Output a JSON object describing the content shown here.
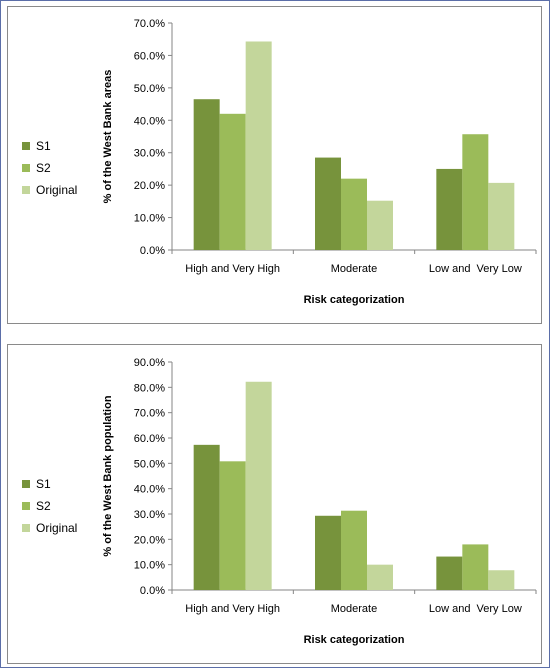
{
  "chart_data": [
    {
      "type": "bar",
      "categories": [
        "High and Very High",
        "Moderate",
        "Low and  Very Low"
      ],
      "series": [
        {
          "name": "S1",
          "color": "#77933c",
          "values": [
            46.5,
            28.5,
            25.0
          ]
        },
        {
          "name": "S2",
          "color": "#9bbb59",
          "values": [
            42.0,
            22.0,
            35.7
          ]
        },
        {
          "name": "Original",
          "color": "#c3d69b",
          "values": [
            64.3,
            15.2,
            20.7
          ]
        }
      ],
      "xlabel": "Risk categorization",
      "ylabel": "% of the West Bank areas",
      "ylim": [
        0,
        70
      ],
      "yticks": [
        0,
        10,
        20,
        30,
        40,
        50,
        60,
        70
      ],
      "ytick_labels": [
        "0.0%",
        "10.0%",
        "20.0%",
        "30.0%",
        "40.0%",
        "50.0%",
        "60.0%",
        "70.0%"
      ],
      "grid": false,
      "legend_position": "left"
    },
    {
      "type": "bar",
      "categories": [
        "High and Very High",
        "Moderate",
        "Low and  Very Low"
      ],
      "series": [
        {
          "name": "S1",
          "color": "#77933c",
          "values": [
            57.3,
            29.3,
            13.2
          ]
        },
        {
          "name": "S2",
          "color": "#9bbb59",
          "values": [
            50.8,
            31.3,
            18.0
          ]
        },
        {
          "name": "Original",
          "color": "#c3d69b",
          "values": [
            82.2,
            10.0,
            7.8
          ]
        }
      ],
      "xlabel": "Risk categorization",
      "ylabel": "% of the West Bank population",
      "ylim": [
        0,
        90
      ],
      "yticks": [
        0,
        10,
        20,
        30,
        40,
        50,
        60,
        70,
        80,
        90
      ],
      "ytick_labels": [
        "0.0%",
        "10.0%",
        "20.0%",
        "30.0%",
        "40.0%",
        "50.0%",
        "60.0%",
        "70.0%",
        "80.0%",
        "90.0%"
      ],
      "grid": false,
      "legend_position": "left"
    }
  ]
}
